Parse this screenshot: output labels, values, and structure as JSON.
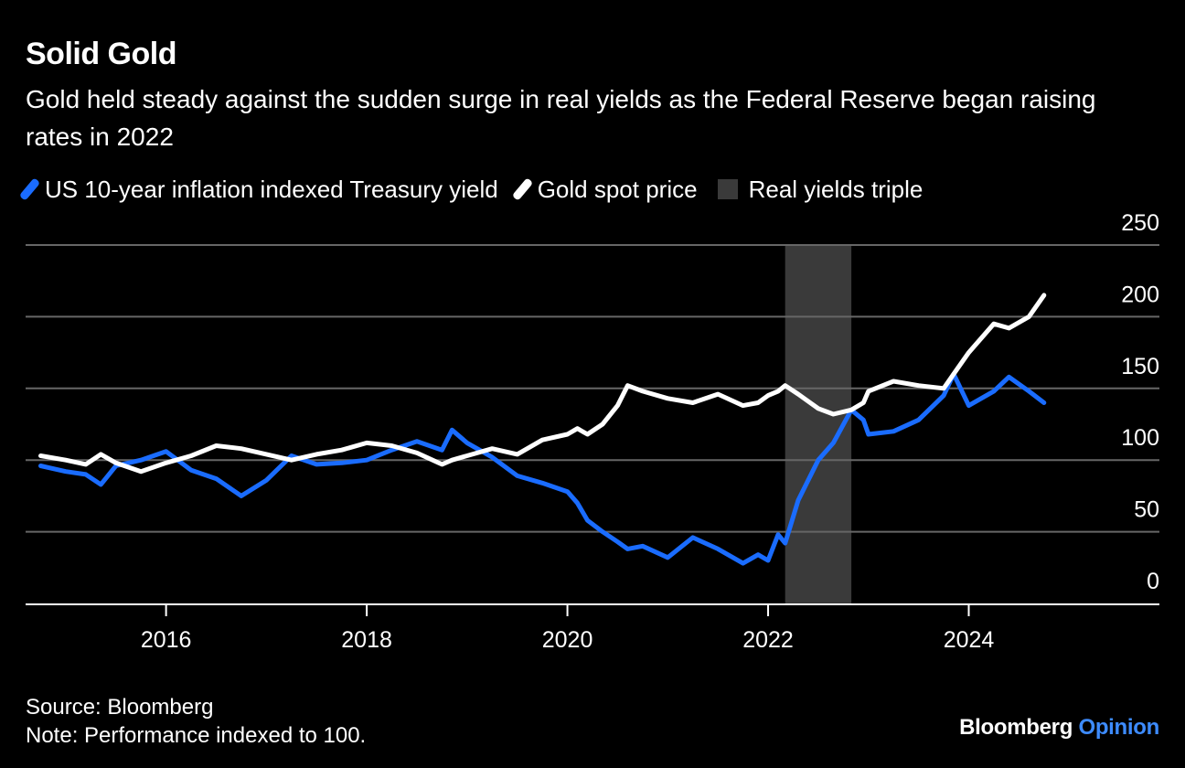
{
  "header": {
    "title": "Solid Gold",
    "subtitle": "Gold held steady against the sudden surge in real yields as the Federal Reserve began raising rates in 2022"
  },
  "legend": {
    "series1": "US 10-year inflation indexed Treasury yield",
    "series2": "Gold spot price",
    "band": "Real yields triple"
  },
  "footer": {
    "source": "Source: Bloomberg",
    "note": "Note: Performance indexed to 100.",
    "brand_main": "Bloomberg",
    "brand_accent": "Opinion"
  },
  "colors": {
    "yield": "#1a6cff",
    "gold": "#ffffff",
    "band": "#3a3a3a",
    "grid": "#666666",
    "brand_accent": "#3d8bff"
  },
  "chart_data": {
    "type": "line",
    "xlim": [
      2014.6,
      2025.9
    ],
    "ylim": [
      0,
      250
    ],
    "x_ticks": [
      2016,
      2018,
      2020,
      2022,
      2024
    ],
    "y_ticks": [
      0,
      50,
      100,
      150,
      200,
      250
    ],
    "y_axis_side": "right",
    "grid": true,
    "legend_position": "top-left",
    "shaded_band": {
      "label": "Real yields triple",
      "x_start": 2022.17,
      "x_end": 2022.83
    },
    "series": [
      {
        "name": "US 10-year inflation indexed Treasury yield",
        "color": "#1a6cff",
        "x": [
          2014.75,
          2015.0,
          2015.2,
          2015.35,
          2015.5,
          2015.75,
          2016.0,
          2016.25,
          2016.5,
          2016.75,
          2017.0,
          2017.25,
          2017.5,
          2017.75,
          2018.0,
          2018.25,
          2018.5,
          2018.75,
          2018.85,
          2019.0,
          2019.25,
          2019.5,
          2019.75,
          2020.0,
          2020.1,
          2020.2,
          2020.35,
          2020.5,
          2020.6,
          2020.75,
          2021.0,
          2021.25,
          2021.5,
          2021.75,
          2021.9,
          2022.0,
          2022.1,
          2022.17,
          2022.3,
          2022.5,
          2022.65,
          2022.83,
          2022.95,
          2023.0,
          2023.25,
          2023.5,
          2023.75,
          2023.85,
          2024.0,
          2024.25,
          2024.4,
          2024.6,
          2024.75
        ],
        "values": [
          96,
          92,
          90,
          83,
          96,
          100,
          106,
          93,
          87,
          75,
          86,
          103,
          97,
          98,
          100,
          107,
          113,
          107,
          121,
          112,
          102,
          89,
          84,
          78,
          70,
          58,
          50,
          43,
          38,
          40,
          32,
          46,
          38,
          28,
          34,
          30,
          48,
          42,
          72,
          100,
          112,
          135,
          128,
          118,
          120,
          128,
          145,
          160,
          138,
          148,
          158,
          148,
          140
        ]
      },
      {
        "name": "Gold spot price",
        "color": "#ffffff",
        "x": [
          2014.75,
          2015.0,
          2015.2,
          2015.35,
          2015.5,
          2015.75,
          2016.0,
          2016.25,
          2016.5,
          2016.75,
          2017.0,
          2017.25,
          2017.5,
          2017.75,
          2018.0,
          2018.25,
          2018.5,
          2018.75,
          2018.85,
          2019.0,
          2019.25,
          2019.5,
          2019.75,
          2020.0,
          2020.1,
          2020.2,
          2020.35,
          2020.5,
          2020.6,
          2020.75,
          2021.0,
          2021.25,
          2021.5,
          2021.75,
          2021.9,
          2022.0,
          2022.1,
          2022.17,
          2022.3,
          2022.5,
          2022.65,
          2022.83,
          2022.95,
          2023.0,
          2023.25,
          2023.5,
          2023.75,
          2023.85,
          2024.0,
          2024.25,
          2024.4,
          2024.6,
          2024.75
        ],
        "values": [
          103,
          100,
          97,
          104,
          98,
          92,
          98,
          103,
          110,
          108,
          104,
          100,
          104,
          107,
          112,
          110,
          105,
          97,
          100,
          103,
          108,
          104,
          114,
          118,
          122,
          118,
          125,
          138,
          152,
          148,
          143,
          140,
          146,
          138,
          140,
          145,
          148,
          152,
          146,
          136,
          132,
          135,
          140,
          148,
          155,
          152,
          150,
          160,
          175,
          195,
          192,
          200,
          215
        ]
      }
    ]
  }
}
